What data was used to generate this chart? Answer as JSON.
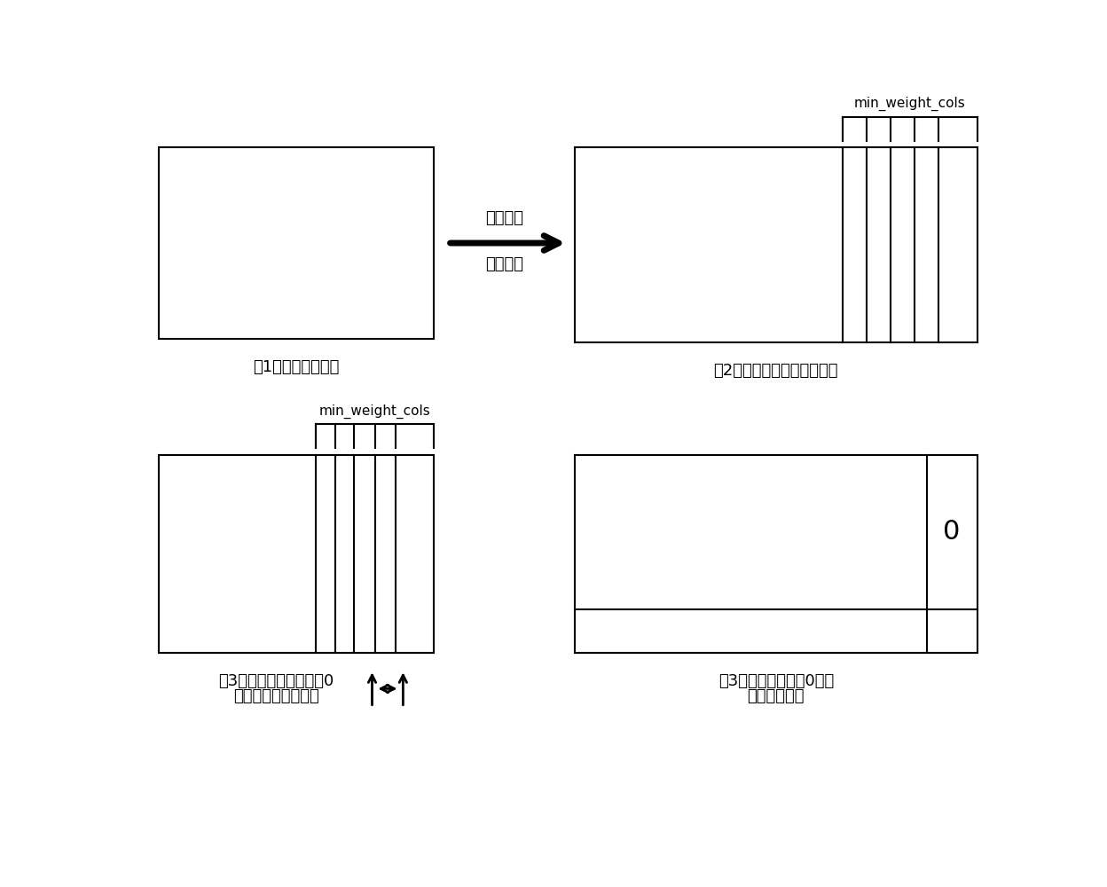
{
  "bg_color": "#ffffff",
  "text_color": "#000000",
  "panel1_label": "（1）行列重新排列",
  "panel2_label": "（2）找出列重最小的列集合",
  "panel3_label_line1": "（3）计算集合中每列非0",
  "panel3_label_line2": "元素所在行的行重和",
  "panel4_label_line1": "（3）交换列并将非0元素",
  "panel4_label_line2": "移至矩阵底部",
  "arrow_label_top": "列重降序",
  "arrow_label_bottom": "行重升序",
  "min_weight_cols_label": "min_weight_cols",
  "panel4_zero_label": "0"
}
